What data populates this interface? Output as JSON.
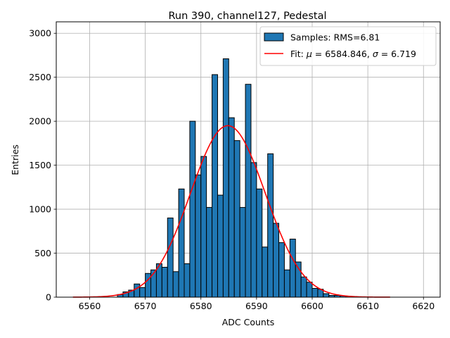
{
  "chart_data": {
    "type": "bar",
    "title": "Run 390, channel127, Pedestal",
    "xlabel": "ADC Counts",
    "ylabel": "Entries",
    "xlim": [
      6554,
      6623
    ],
    "ylim": [
      0,
      3130
    ],
    "x_ticks": [
      6560,
      6570,
      6580,
      6590,
      6600,
      6610,
      6620
    ],
    "y_ticks": [
      0,
      500,
      1000,
      1500,
      2000,
      2500,
      3000
    ],
    "grid": true,
    "legend_position": "top-right",
    "colors": {
      "bars": "#1f77b4",
      "bar_edge": "#000000",
      "fit": "#ff0000",
      "grid": "#b0b0b0"
    },
    "series": [
      {
        "name": "Samples: RMS=6.81",
        "kind": "histogram",
        "bins": [
          6565,
          6566,
          6567,
          6568,
          6569,
          6570,
          6571,
          6572,
          6573,
          6574,
          6575,
          6576,
          6577,
          6578,
          6579,
          6580,
          6581,
          6582,
          6583,
          6584,
          6585,
          6586,
          6587,
          6588,
          6589,
          6590,
          6591,
          6592,
          6593,
          6594,
          6595,
          6596,
          6597,
          6598,
          6599,
          6600,
          6601,
          6602,
          6603,
          6604,
          6605,
          6606,
          6607
        ],
        "counts": [
          30,
          60,
          80,
          150,
          110,
          270,
          310,
          380,
          340,
          900,
          290,
          1230,
          380,
          2000,
          1390,
          1600,
          1020,
          2530,
          1160,
          2710,
          2040,
          1780,
          1020,
          2420,
          1530,
          1230,
          570,
          1630,
          840,
          620,
          310,
          660,
          400,
          230,
          170,
          100,
          90,
          40,
          20,
          20,
          15,
          10,
          5
        ],
        "bin_width": 1
      },
      {
        "name": "Fit: μ = 6584.846, σ = 6.719",
        "kind": "gaussian",
        "mu": 6584.846,
        "sigma": 6.719,
        "amplitude": 1950,
        "range": [
          6557,
          6614
        ]
      }
    ],
    "legend": [
      {
        "label_plain": "Samples: RMS=6.81"
      },
      {
        "prefix": "Fit: ",
        "mu_symbol": "μ",
        "mu_value": " = 6584.846, ",
        "sigma_symbol": "σ",
        "sigma_value": " = 6.719"
      }
    ]
  }
}
